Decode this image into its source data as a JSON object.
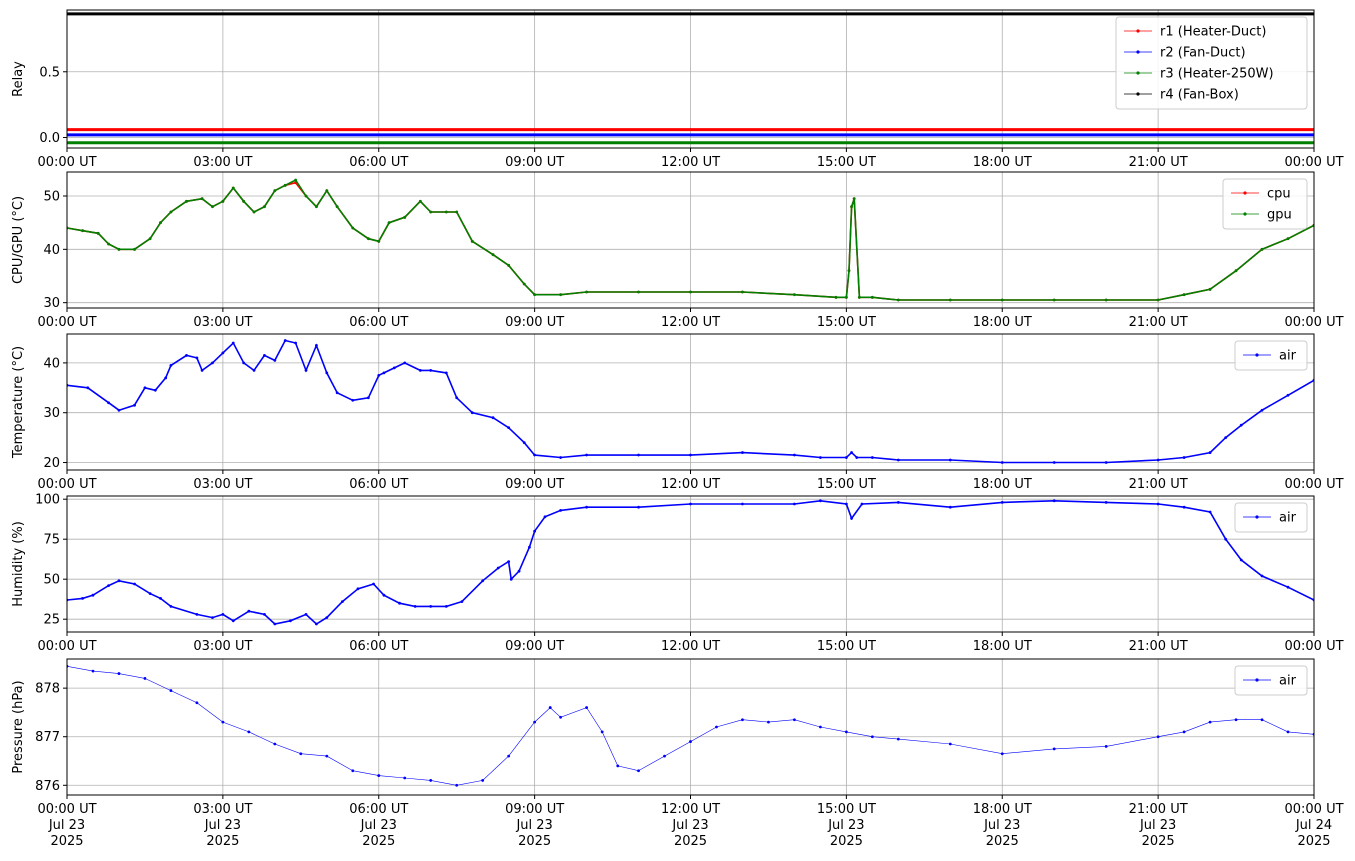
{
  "chart_data": [
    {
      "type": "line",
      "ylabel": "Relay",
      "xlim": [
        "2025-07-23 00:00",
        "2025-07-24 00:00"
      ],
      "ylim": [
        -0.08,
        0.97
      ],
      "yticks": [
        0.0,
        0.5
      ],
      "ytick_labels": [
        "0.0",
        "0.5"
      ],
      "xtick_labels": [
        "00:00 UT",
        "03:00 UT",
        "06:00 UT",
        "09:00 UT",
        "12:00 UT",
        "15:00 UT",
        "18:00 UT",
        "21:00 UT",
        "00:00 UT"
      ],
      "grid": true,
      "legend": "top-right",
      "series": [
        {
          "name": "r1 (Heater-Duct)",
          "color": "#ff0000",
          "x": [
            0,
            24
          ],
          "y": [
            0.06,
            0.06
          ]
        },
        {
          "name": "r2 (Fan-Duct)",
          "color": "#0000ff",
          "x": [
            0,
            24
          ],
          "y": [
            0.02,
            0.02
          ]
        },
        {
          "name": "r3 (Heater-250W)",
          "color": "#008000",
          "x": [
            0,
            24
          ],
          "y": [
            -0.04,
            -0.04
          ]
        },
        {
          "name": "r4 (Fan-Box)",
          "color": "#000000",
          "x": [
            0,
            24
          ],
          "y": [
            0.94,
            0.94
          ]
        }
      ]
    },
    {
      "type": "line",
      "ylabel": "CPU/GPU (°C)",
      "xlim": [
        "2025-07-23 00:00",
        "2025-07-24 00:00"
      ],
      "ylim": [
        29,
        54.5
      ],
      "yticks": [
        30,
        40,
        50
      ],
      "ytick_labels": [
        "30",
        "40",
        "50"
      ],
      "xtick_labels": [
        "00:00 UT",
        "03:00 UT",
        "06:00 UT",
        "09:00 UT",
        "12:00 UT",
        "15:00 UT",
        "18:00 UT",
        "21:00 UT",
        "00:00 UT"
      ],
      "grid": true,
      "legend": "top-right",
      "series": [
        {
          "name": "cpu",
          "color": "#ff0000",
          "x": [
            0,
            0.3,
            0.6,
            0.8,
            1.0,
            1.3,
            1.6,
            1.8,
            2.0,
            2.3,
            2.6,
            2.8,
            3.0,
            3.2,
            3.4,
            3.6,
            3.8,
            4.0,
            4.2,
            4.4,
            4.6,
            4.8,
            5.0,
            5.2,
            5.5,
            5.8,
            6.0,
            6.2,
            6.5,
            6.8,
            7.0,
            7.3,
            7.5,
            7.8,
            8.2,
            8.5,
            8.8,
            9.0,
            9.5,
            10,
            11,
            12,
            13,
            14,
            14.8,
            15.0,
            15.05,
            15.1,
            15.15,
            15.25,
            15.5,
            16,
            17,
            18,
            19,
            20,
            21,
            21.5,
            22,
            22.5,
            23,
            23.5,
            24
          ],
          "y": [
            44,
            43.5,
            43,
            41,
            40,
            40,
            42,
            45,
            47,
            49,
            49.5,
            48,
            49,
            51.5,
            49,
            47,
            48,
            51,
            52,
            52.5,
            50,
            48,
            51,
            48,
            44,
            42,
            41.5,
            45,
            46,
            49,
            47,
            47,
            47,
            41.5,
            39,
            37,
            33.5,
            31.5,
            31.5,
            32,
            32,
            32,
            32,
            31.5,
            31,
            31,
            36,
            48,
            49.5,
            31,
            31,
            30.5,
            30.5,
            30.5,
            30.5,
            30.5,
            30.5,
            31.5,
            32.5,
            36,
            40,
            42,
            44.5
          ]
        },
        {
          "name": "gpu",
          "color": "#008000",
          "x": [
            0,
            0.3,
            0.6,
            0.8,
            1.0,
            1.3,
            1.6,
            1.8,
            2.0,
            2.3,
            2.6,
            2.8,
            3.0,
            3.2,
            3.4,
            3.6,
            3.8,
            4.0,
            4.2,
            4.4,
            4.6,
            4.8,
            5.0,
            5.2,
            5.5,
            5.8,
            6.0,
            6.2,
            6.5,
            6.8,
            7.0,
            7.3,
            7.5,
            7.8,
            8.2,
            8.5,
            8.8,
            9.0,
            9.5,
            10,
            11,
            12,
            13,
            14,
            14.8,
            15.0,
            15.05,
            15.1,
            15.15,
            15.25,
            15.5,
            16,
            17,
            18,
            19,
            20,
            21,
            21.5,
            22,
            22.5,
            23,
            23.5,
            24
          ],
          "y": [
            44,
            43.5,
            43,
            41,
            40,
            40,
            42,
            45,
            47,
            49,
            49.5,
            48,
            49,
            51.5,
            49,
            47,
            48,
            51,
            52,
            53,
            50,
            48,
            51,
            48,
            44,
            42,
            41.5,
            45,
            46,
            49,
            47,
            47,
            47,
            41.5,
            39,
            37,
            33.5,
            31.5,
            31.5,
            32,
            32,
            32,
            32,
            31.5,
            31,
            31,
            36,
            48,
            49.5,
            31,
            31,
            30.5,
            30.5,
            30.5,
            30.5,
            30.5,
            30.5,
            31.5,
            32.5,
            36,
            40,
            42,
            44.5
          ]
        }
      ]
    },
    {
      "type": "line",
      "ylabel": "Temperature (°C)",
      "xlim": [
        "2025-07-23 00:00",
        "2025-07-24 00:00"
      ],
      "ylim": [
        18.5,
        45.8
      ],
      "yticks": [
        20,
        30,
        40
      ],
      "ytick_labels": [
        "20",
        "30",
        "40"
      ],
      "xtick_labels": [
        "00:00 UT",
        "03:00 UT",
        "06:00 UT",
        "09:00 UT",
        "12:00 UT",
        "15:00 UT",
        "18:00 UT",
        "21:00 UT",
        "00:00 UT"
      ],
      "grid": true,
      "legend": "top-right",
      "series": [
        {
          "name": "air",
          "color": "#0000ff",
          "x": [
            0,
            0.4,
            0.8,
            1.0,
            1.3,
            1.5,
            1.7,
            1.9,
            2.0,
            2.3,
            2.5,
            2.6,
            2.8,
            3.0,
            3.2,
            3.4,
            3.6,
            3.8,
            4.0,
            4.2,
            4.4,
            4.6,
            4.8,
            5.0,
            5.2,
            5.5,
            5.8,
            6.0,
            6.1,
            6.3,
            6.5,
            6.8,
            7.0,
            7.3,
            7.5,
            7.8,
            8.2,
            8.5,
            8.8,
            9.0,
            9.5,
            10,
            11,
            12,
            13,
            14,
            14.5,
            15.0,
            15.1,
            15.2,
            15.5,
            16,
            17,
            18,
            19,
            20,
            21,
            21.5,
            22,
            22.3,
            22.6,
            23,
            23.5,
            24
          ],
          "y": [
            35.5,
            35,
            32,
            30.5,
            31.5,
            35,
            34.5,
            37,
            39.5,
            41.5,
            41,
            38.5,
            40,
            42,
            44,
            40,
            38.5,
            41.5,
            40.5,
            44.5,
            44,
            38.5,
            43.5,
            38,
            34,
            32.5,
            33,
            37.5,
            38,
            39,
            40,
            38.5,
            38.5,
            38,
            33,
            30,
            29,
            27,
            24,
            21.5,
            21,
            21.5,
            21.5,
            21.5,
            22,
            21.5,
            21,
            21,
            22,
            21,
            21,
            20.5,
            20.5,
            20,
            20,
            20,
            20.5,
            21,
            22,
            25,
            27.5,
            30.5,
            33.5,
            36.5
          ]
        }
      ]
    },
    {
      "type": "line",
      "ylabel": "Humidity (%)",
      "xlim": [
        "2025-07-23 00:00",
        "2025-07-24 00:00"
      ],
      "ylim": [
        17,
        102
      ],
      "yticks": [
        25,
        50,
        75,
        100
      ],
      "ytick_labels": [
        "25",
        "50",
        "75",
        "100"
      ],
      "xtick_labels": [
        "00:00 UT",
        "03:00 UT",
        "06:00 UT",
        "09:00 UT",
        "12:00 UT",
        "15:00 UT",
        "18:00 UT",
        "21:00 UT",
        "00:00 UT"
      ],
      "grid": true,
      "legend": "top-right",
      "series": [
        {
          "name": "air",
          "color": "#0000ff",
          "x": [
            0,
            0.3,
            0.5,
            0.8,
            1.0,
            1.3,
            1.6,
            1.8,
            2.0,
            2.5,
            2.8,
            3.0,
            3.2,
            3.5,
            3.8,
            4.0,
            4.3,
            4.6,
            4.8,
            5.0,
            5.3,
            5.6,
            5.9,
            6.1,
            6.4,
            6.7,
            7.0,
            7.3,
            7.6,
            8.0,
            8.3,
            8.5,
            8.55,
            8.7,
            8.9,
            9.0,
            9.2,
            9.5,
            10,
            11,
            12,
            13,
            14,
            14.5,
            15.0,
            15.1,
            15.3,
            16,
            17,
            18,
            19,
            20,
            21,
            21.5,
            22,
            22.3,
            22.6,
            23,
            23.5,
            24
          ],
          "y": [
            37,
            38,
            40,
            46,
            49,
            47,
            41,
            38,
            33,
            28,
            26,
            28,
            24,
            30,
            28,
            22,
            24,
            28,
            22,
            26,
            36,
            44,
            47,
            40,
            35,
            33,
            33,
            33,
            36,
            49,
            57,
            61,
            50,
            55,
            70,
            80,
            89,
            93,
            95,
            95,
            97,
            97,
            97,
            99,
            97,
            88,
            97,
            98,
            95,
            98,
            99,
            98,
            97,
            95,
            92,
            75,
            62,
            52,
            45,
            37
          ]
        }
      ]
    },
    {
      "type": "scatter",
      "ylabel": "Pressure (hPa)",
      "xlim": [
        "2025-07-23 00:00",
        "2025-07-24 00:00"
      ],
      "ylim": [
        875.8,
        878.6
      ],
      "yticks": [
        876,
        877,
        878
      ],
      "ytick_labels": [
        "876",
        "877",
        "878"
      ],
      "xtick_labels": [
        "00:00 UT",
        "03:00 UT",
        "06:00 UT",
        "09:00 UT",
        "12:00 UT",
        "15:00 UT",
        "18:00 UT",
        "21:00 UT",
        "00:00 UT"
      ],
      "xtick_labels_line2": [
        "Jul 23",
        "Jul 23",
        "Jul 23",
        "Jul 23",
        "Jul 23",
        "Jul 23",
        "Jul 23",
        "Jul 23",
        "Jul 24"
      ],
      "xtick_labels_line3": [
        "2025",
        "2025",
        "2025",
        "2025",
        "2025",
        "2025",
        "2025",
        "2025",
        "2025"
      ],
      "grid": true,
      "legend": "top-right",
      "series": [
        {
          "name": "air",
          "color": "#0000ff",
          "x": [
            0,
            0.5,
            1.0,
            1.5,
            2.0,
            2.5,
            3.0,
            3.5,
            4.0,
            4.5,
            5.0,
            5.5,
            6.0,
            6.5,
            7.0,
            7.5,
            8.0,
            8.5,
            9.0,
            9.3,
            9.5,
            10.0,
            10.3,
            10.6,
            11.0,
            11.5,
            12.0,
            12.5,
            13.0,
            13.5,
            14.0,
            14.5,
            15.0,
            15.5,
            16.0,
            17.0,
            18.0,
            19.0,
            20.0,
            21.0,
            21.5,
            22.0,
            22.5,
            23.0,
            23.5,
            24
          ],
          "y": [
            878.45,
            878.35,
            878.3,
            878.2,
            877.95,
            877.7,
            877.3,
            877.1,
            876.85,
            876.65,
            876.6,
            876.3,
            876.2,
            876.15,
            876.1,
            876.0,
            876.1,
            876.6,
            877.3,
            877.6,
            877.4,
            877.6,
            877.1,
            876.4,
            876.3,
            876.6,
            876.9,
            877.2,
            877.35,
            877.3,
            877.35,
            877.2,
            877.1,
            877.0,
            876.95,
            876.85,
            876.65,
            876.75,
            876.8,
            877.0,
            877.1,
            877.3,
            877.35,
            877.35,
            877.1,
            877.05
          ]
        }
      ]
    }
  ]
}
